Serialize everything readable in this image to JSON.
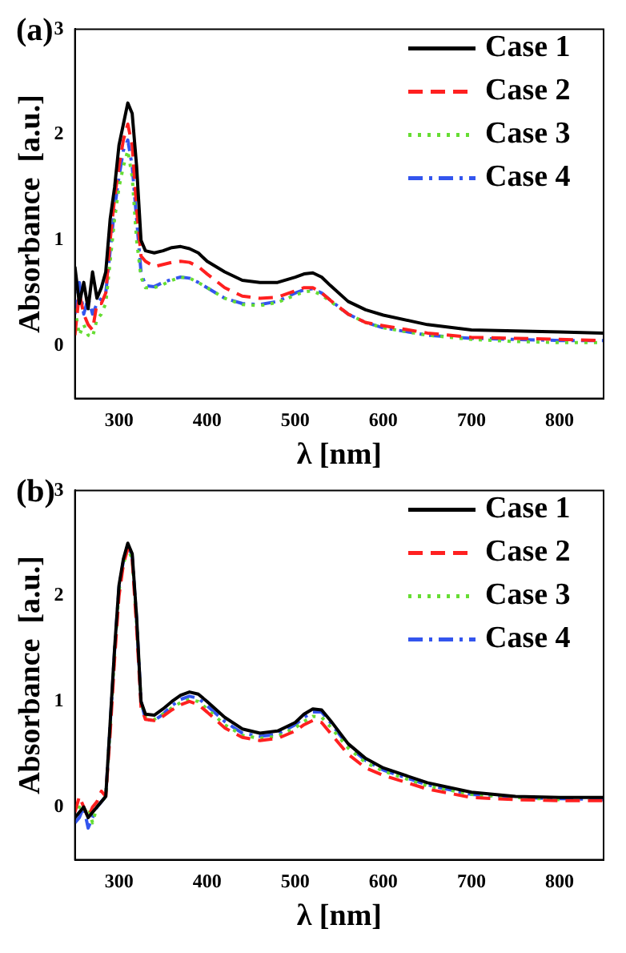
{
  "chart_data": [
    {
      "type": "line",
      "title": "(a)",
      "xlabel": "λ [nm]",
      "ylabel": "Absorbance  [a.u.]",
      "xlim": [
        250,
        850
      ],
      "xticks": [
        300,
        400,
        500,
        600,
        700,
        800
      ],
      "ylim": [
        -0.5,
        3
      ],
      "yticks": [
        0,
        1,
        2,
        3
      ],
      "grid": false,
      "legend": "top right",
      "x": [
        250,
        255,
        260,
        265,
        270,
        275,
        280,
        285,
        290,
        295,
        300,
        305,
        310,
        315,
        320,
        325,
        330,
        340,
        350,
        360,
        370,
        380,
        390,
        400,
        420,
        440,
        460,
        480,
        500,
        510,
        520,
        530,
        540,
        560,
        580,
        600,
        650,
        700,
        750,
        800,
        850
      ],
      "series": [
        {
          "name": "Case 1",
          "color": "#000000",
          "line_style": "solid",
          "values": [
            0.75,
            0.4,
            0.6,
            0.35,
            0.7,
            0.45,
            0.55,
            0.7,
            1.2,
            1.5,
            1.9,
            2.1,
            2.3,
            2.2,
            1.7,
            1.0,
            0.9,
            0.88,
            0.9,
            0.93,
            0.94,
            0.92,
            0.88,
            0.8,
            0.7,
            0.62,
            0.6,
            0.6,
            0.65,
            0.68,
            0.69,
            0.65,
            0.57,
            0.42,
            0.34,
            0.29,
            0.2,
            0.15,
            0.14,
            0.13,
            0.12
          ]
        },
        {
          "name": "Case 2",
          "color": "#ff2020",
          "line_style": "dashed",
          "values": [
            0.1,
            0.5,
            0.3,
            0.2,
            0.15,
            0.4,
            0.4,
            0.5,
            1.0,
            1.4,
            1.7,
            1.95,
            2.1,
            1.9,
            1.3,
            0.85,
            0.8,
            0.75,
            0.77,
            0.79,
            0.8,
            0.79,
            0.75,
            0.68,
            0.55,
            0.47,
            0.45,
            0.46,
            0.52,
            0.55,
            0.55,
            0.5,
            0.43,
            0.3,
            0.22,
            0.19,
            0.12,
            0.08,
            0.07,
            0.06,
            0.05
          ]
        },
        {
          "name": "Case 3",
          "color": "#66dd33",
          "line_style": "dotted",
          "values": [
            0.35,
            0.1,
            0.2,
            0.1,
            0.08,
            0.25,
            0.3,
            0.4,
            0.8,
            1.2,
            1.5,
            1.7,
            1.85,
            1.6,
            1.0,
            0.65,
            0.55,
            0.55,
            0.58,
            0.62,
            0.65,
            0.64,
            0.6,
            0.55,
            0.45,
            0.39,
            0.38,
            0.41,
            0.48,
            0.51,
            0.52,
            0.48,
            0.42,
            0.3,
            0.22,
            0.17,
            0.1,
            0.06,
            0.04,
            0.03,
            0.03
          ]
        },
        {
          "name": "Case 4",
          "color": "#3355ee",
          "line_style": "dashdot",
          "values": [
            0.3,
            0.6,
            0.3,
            0.45,
            0.3,
            0.4,
            0.45,
            0.5,
            0.9,
            1.3,
            1.6,
            1.85,
            1.95,
            1.7,
            1.2,
            0.7,
            0.57,
            0.56,
            0.6,
            0.63,
            0.65,
            0.64,
            0.6,
            0.55,
            0.45,
            0.4,
            0.39,
            0.42,
            0.5,
            0.53,
            0.54,
            0.5,
            0.43,
            0.3,
            0.22,
            0.17,
            0.1,
            0.07,
            0.06,
            0.05,
            0.05
          ]
        }
      ]
    },
    {
      "type": "line",
      "title": "(b)",
      "xlabel": "λ [nm]",
      "ylabel": "Absorbance  [a.u.]",
      "xlim": [
        250,
        850
      ],
      "xticks": [
        300,
        400,
        500,
        600,
        700,
        800
      ],
      "ylim": [
        -0.5,
        3
      ],
      "yticks": [
        0,
        1,
        2,
        3
      ],
      "grid": false,
      "legend": "top right",
      "x": [
        250,
        255,
        260,
        265,
        270,
        275,
        280,
        285,
        290,
        295,
        300,
        305,
        310,
        315,
        320,
        325,
        330,
        340,
        350,
        360,
        370,
        380,
        390,
        400,
        420,
        440,
        460,
        480,
        500,
        510,
        520,
        530,
        540,
        560,
        580,
        600,
        650,
        700,
        750,
        800,
        850
      ],
      "series": [
        {
          "name": "Case 1",
          "color": "#000000",
          "line_style": "solid",
          "values": [
            -0.1,
            -0.05,
            0,
            -0.1,
            -0.05,
            0,
            0.05,
            0.1,
            0.8,
            1.5,
            2.1,
            2.35,
            2.5,
            2.4,
            1.8,
            1.0,
            0.88,
            0.87,
            0.93,
            1.0,
            1.06,
            1.09,
            1.07,
            1.0,
            0.85,
            0.74,
            0.7,
            0.72,
            0.8,
            0.88,
            0.93,
            0.92,
            0.82,
            0.6,
            0.46,
            0.37,
            0.23,
            0.14,
            0.1,
            0.09,
            0.09
          ]
        },
        {
          "name": "Case 2",
          "color": "#ff2020",
          "line_style": "dashed",
          "values": [
            -0.05,
            0.1,
            0.0,
            -0.1,
            0.0,
            0.05,
            0.15,
            0.1,
            0.7,
            1.4,
            2.0,
            2.3,
            2.45,
            2.35,
            1.7,
            0.95,
            0.83,
            0.82,
            0.86,
            0.92,
            0.97,
            1.0,
            0.97,
            0.9,
            0.75,
            0.66,
            0.63,
            0.65,
            0.72,
            0.78,
            0.82,
            0.8,
            0.7,
            0.5,
            0.37,
            0.3,
            0.17,
            0.09,
            0.07,
            0.06,
            0.06
          ]
        },
        {
          "name": "Case 3",
          "color": "#66dd33",
          "line_style": "dotted",
          "values": [
            -0.1,
            0,
            -0.05,
            0,
            -0.15,
            0,
            0.05,
            0.1,
            0.75,
            1.45,
            2.05,
            2.3,
            2.45,
            2.35,
            1.75,
            1.0,
            0.85,
            0.83,
            0.88,
            0.94,
            0.99,
            1.02,
            1.0,
            0.93,
            0.78,
            0.68,
            0.65,
            0.67,
            0.75,
            0.81,
            0.86,
            0.85,
            0.76,
            0.56,
            0.42,
            0.34,
            0.2,
            0.12,
            0.09,
            0.07,
            null
          ]
        },
        {
          "name": "Case 4",
          "color": "#3355ee",
          "line_style": "dashdot",
          "values": [
            -0.15,
            -0.1,
            0,
            -0.2,
            -0.1,
            0,
            0.05,
            0.1,
            0.78,
            1.48,
            2.08,
            2.33,
            2.48,
            2.38,
            1.78,
            1.0,
            0.83,
            0.82,
            0.88,
            0.96,
            1.02,
            1.05,
            1.03,
            0.96,
            0.81,
            0.7,
            0.67,
            0.69,
            0.78,
            0.85,
            0.9,
            0.9,
            0.8,
            0.58,
            0.44,
            0.35,
            0.21,
            0.12,
            0.09,
            0.08,
            0.07
          ]
        }
      ]
    }
  ]
}
